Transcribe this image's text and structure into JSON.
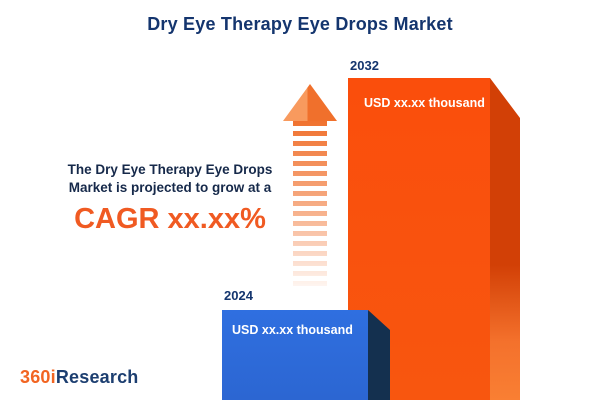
{
  "title": "Dry Eye Therapy Eye Drops Market",
  "intro": {
    "line1": "The Dry Eye Therapy Eye Drops",
    "line2": "Market is projected to grow at a",
    "cagr": "CAGR xx.xx%"
  },
  "chart_data": {
    "type": "bar",
    "categories": [
      "2024",
      "2032"
    ],
    "values": [
      null,
      null
    ],
    "value_labels": [
      "USD xx.xx thousand",
      "USD xx.xx thousand"
    ],
    "title": "Dry Eye Therapy Eye Drops Market",
    "xlabel": "",
    "ylabel": "",
    "legend": false,
    "grid": false,
    "bar_colors": [
      "#2e6bdb",
      "#f8510d"
    ],
    "notes": "Actual values masked as 'xx.xx' placeholders in the source infographic; 2032 bar drawn roughly 3.5x the height of the 2024 bar"
  },
  "bars": [
    {
      "year": "2024",
      "value_label": "USD xx.xx thousand"
    },
    {
      "year": "2032",
      "value_label": "USD xx.xx thousand"
    }
  ],
  "logo": {
    "part1": "360i",
    "part2": "Research"
  },
  "colors": {
    "navy": "#14356e",
    "orange_accent": "#f05a22",
    "bar_blue": "#2e6bdb",
    "bar_blue_side": "#14304f",
    "bar_orange": "#f8510d",
    "bar_orange_side": "#d24006"
  }
}
